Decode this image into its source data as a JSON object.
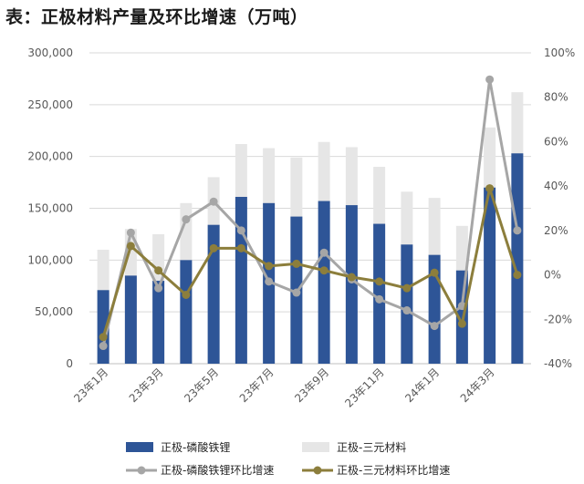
{
  "title": "表：正极材料产量及环比增速（万吨）",
  "chart_data": {
    "type": "bar+line",
    "categories": [
      "23年1月",
      "23年2月",
      "23年3月",
      "23年4月",
      "23年5月",
      "23年6月",
      "23年7月",
      "23年8月",
      "23年9月",
      "23年10月",
      "23年11月",
      "23年12月",
      "24年1月",
      "24年2月",
      "24年3月",
      "24年4月"
    ],
    "x_tick_labels": [
      "23年1月",
      "",
      "23年3月",
      "",
      "23年5月",
      "",
      "23年7月",
      "",
      "23年9月",
      "",
      "23年11月",
      "",
      "24年1月",
      "",
      "24年3月",
      ""
    ],
    "left_axis": {
      "ylim": [
        0,
        300000
      ],
      "ticks": [
        "0",
        "50,000",
        "100,000",
        "150,000",
        "200,000",
        "250,000",
        "300,000"
      ]
    },
    "right_axis": {
      "ylim": [
        -40,
        100
      ],
      "ticks": [
        "-40%",
        "-20%",
        "0%",
        "20%",
        "40%",
        "60%",
        "80%",
        "100%"
      ]
    },
    "series": [
      {
        "name": "正极-磷酸铁锂",
        "kind": "bar",
        "color": "#2e5597",
        "values": [
          71000,
          85000,
          80000,
          100000,
          134000,
          161000,
          155000,
          142000,
          157000,
          153000,
          135000,
          115000,
          105000,
          90000,
          170000,
          203000
        ]
      },
      {
        "name": "正极-三元材料",
        "kind": "bar",
        "color": "#e6e6e6",
        "values": [
          110000,
          130000,
          125000,
          155000,
          180000,
          212000,
          208000,
          199000,
          214000,
          209000,
          190000,
          166000,
          160000,
          133000,
          228000,
          262000
        ]
      },
      {
        "name": "正极-磷酸铁锂环比增速",
        "kind": "line",
        "color": "#a6a6a6",
        "values": [
          -32,
          19,
          -6,
          25,
          33,
          20,
          -3,
          -8,
          10,
          -2,
          -11,
          -16,
          -23,
          -14,
          88,
          20
        ]
      },
      {
        "name": "正极-三元材料环比增速",
        "kind": "line",
        "color": "#8c7e3c",
        "values": [
          -28,
          13,
          2,
          -9,
          12,
          12,
          4,
          5,
          2,
          -1,
          -3,
          -6,
          1,
          -22,
          39,
          0
        ]
      }
    ]
  }
}
